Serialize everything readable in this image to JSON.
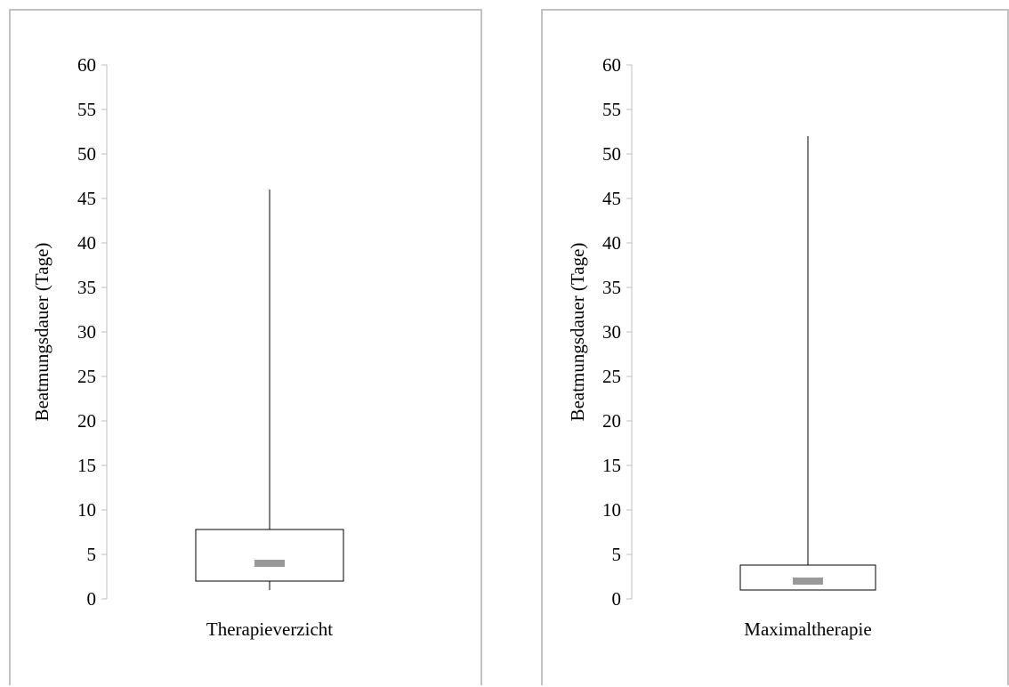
{
  "chart_data": [
    {
      "type": "box",
      "ylabel": "Beatmungsdauer (Tage)",
      "ylim": [
        0,
        60
      ],
      "yticks": [
        0,
        5,
        10,
        15,
        20,
        25,
        30,
        35,
        40,
        45,
        50,
        55,
        60
      ],
      "category": "Therapieverzicht",
      "min": 1,
      "q1": 2,
      "median": 4,
      "q3": 7.8,
      "max": 46,
      "colors": {
        "box_fill": "#ffffff",
        "box_stroke": "#000000",
        "median": "#999999",
        "axis": "#bfbfbf"
      }
    },
    {
      "type": "box",
      "ylabel": "Beatmungsdauer (Tage)",
      "ylim": [
        0,
        60
      ],
      "yticks": [
        0,
        5,
        10,
        15,
        20,
        25,
        30,
        35,
        40,
        45,
        50,
        55,
        60
      ],
      "category": "Maximaltherapie",
      "min": 1,
      "q1": 1,
      "median": 2,
      "q3": 3.8,
      "max": 52,
      "colors": {
        "box_fill": "#ffffff",
        "box_stroke": "#000000",
        "median": "#999999",
        "axis": "#bfbfbf"
      }
    }
  ]
}
